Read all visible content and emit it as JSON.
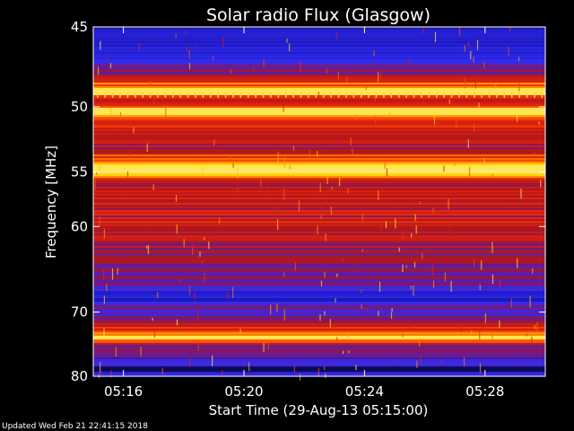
{
  "chart_data": {
    "type": "heatmap",
    "title": "Solar radio Flux (Glasgow)",
    "xlabel": "Start Time (29-Aug-13 05:15:00)",
    "ylabel": "Frequency [MHz]",
    "x_ticks": [
      "05:16",
      "05:20",
      "05:24",
      "05:28"
    ],
    "x_tick_minutes": [
      1,
      5,
      9,
      13
    ],
    "xlim_minutes": [
      0,
      15
    ],
    "y_ticks": [
      45,
      50,
      55,
      60,
      70,
      80
    ],
    "ylim": [
      45,
      80
    ],
    "y_scale": "reciprocal",
    "colormap": [
      "#000000",
      "#1a10a8",
      "#2e2ef8",
      "#6a1890",
      "#b01818",
      "#e02010",
      "#ff6000",
      "#ffd000",
      "#ffffc0"
    ],
    "bright_bands_mhz": [
      48.9,
      50.3,
      54.6,
      73.6
    ],
    "cool_bands_mhz": [
      45.4,
      46.2,
      67.8,
      78.6
    ],
    "intensity_profile": [
      {
        "mhz": 45.0,
        "level": 0.25
      },
      {
        "mhz": 46.0,
        "level": 0.2
      },
      {
        "mhz": 47.5,
        "level": 0.35
      },
      {
        "mhz": 48.9,
        "level": 0.95
      },
      {
        "mhz": 49.5,
        "level": 0.55
      },
      {
        "mhz": 50.3,
        "level": 0.85
      },
      {
        "mhz": 51.0,
        "level": 0.6
      },
      {
        "mhz": 53.0,
        "level": 0.5
      },
      {
        "mhz": 54.6,
        "level": 0.95
      },
      {
        "mhz": 56.0,
        "level": 0.55
      },
      {
        "mhz": 58.0,
        "level": 0.55
      },
      {
        "mhz": 61.0,
        "level": 0.55
      },
      {
        "mhz": 63.0,
        "level": 0.4
      },
      {
        "mhz": 66.0,
        "level": 0.38
      },
      {
        "mhz": 67.8,
        "level": 0.18
      },
      {
        "mhz": 69.0,
        "level": 0.3
      },
      {
        "mhz": 71.0,
        "level": 0.4
      },
      {
        "mhz": 73.6,
        "level": 0.95
      },
      {
        "mhz": 75.0,
        "level": 0.35
      },
      {
        "mhz": 77.0,
        "level": 0.28
      },
      {
        "mhz": 78.6,
        "level": 0.15
      },
      {
        "mhz": 80.0,
        "level": 0.2
      }
    ]
  },
  "footer": "Updated Wed Feb 21 22:41:15 2018"
}
